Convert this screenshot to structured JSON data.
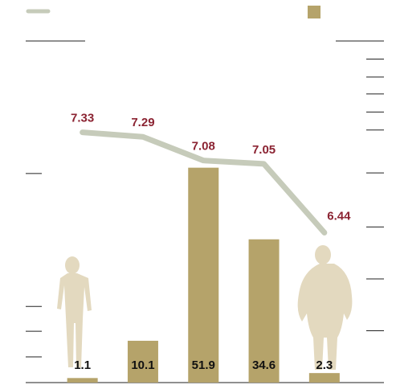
{
  "chart_data": {
    "type": "bar",
    "series": [
      {
        "type": "bar",
        "color": "#b5a36a",
        "values": [
          1.1,
          10.1,
          51.9,
          34.6,
          2.3
        ]
      },
      {
        "type": "line",
        "color": "#c6cbba",
        "values": [
          7.33,
          7.29,
          7.08,
          7.05,
          6.44
        ],
        "axis": "y2"
      }
    ],
    "ylim": [
      0,
      82.5
    ],
    "yticks": [
      0,
      6.2,
      12.4,
      18.4,
      50.5,
      82.5
    ],
    "y2lim": [
      5.11,
      8.14
    ],
    "y2ticks": [
      5.11,
      5.57,
      6.03,
      6.49,
      6.97,
      7.35,
      7.51,
      7.67,
      7.82,
      7.98,
      8.14
    ],
    "grid": false
  }
}
